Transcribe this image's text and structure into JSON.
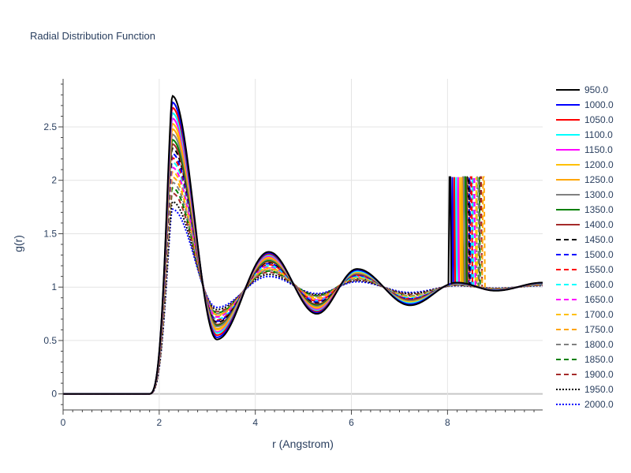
{
  "chart_data": {
    "type": "line",
    "title": "Radial Distribution Function",
    "xlabel": "r (Angstrom)",
    "ylabel": "g(r)",
    "xlim": [
      0,
      9.98
    ],
    "ylim": [
      -0.15,
      2.95
    ],
    "xticks": [
      0,
      2,
      4,
      6,
      8
    ],
    "yticks": [
      0,
      0.5,
      1,
      1.5,
      2,
      2.5
    ],
    "xtick_labels": [
      "0",
      "2",
      "4",
      "6",
      "8"
    ],
    "ytick_labels": [
      "0",
      "0.5",
      "1",
      "1.5",
      "2",
      "2.5"
    ],
    "grid": true,
    "legend_position": "right",
    "model": {
      "r_onset": 1.78,
      "peak1_r": 2.27,
      "min1_r": 3.2,
      "peak2_r": 4.28,
      "min2_r": 5.28,
      "peak3_r": 6.12,
      "min3_r": 7.22,
      "spike_height": 2.03
    },
    "series": [
      {
        "name": "950.0",
        "color": "#000000",
        "dash": "solid",
        "peak1": 2.79,
        "min1": 0.51,
        "peak2": 1.33,
        "min2": 0.75,
        "peak3": 1.17,
        "spike_r": 8.05
      },
      {
        "name": "1000.0",
        "color": "#0000ff",
        "dash": "solid",
        "peak1": 2.73,
        "min1": 0.53,
        "peak2": 1.32,
        "min2": 0.76,
        "peak3": 1.16,
        "spike_r": 8.1
      },
      {
        "name": "1050.0",
        "color": "#ff0000",
        "dash": "solid",
        "peak1": 2.68,
        "min1": 0.55,
        "peak2": 1.31,
        "min2": 0.77,
        "peak3": 1.16,
        "spike_r": 8.14
      },
      {
        "name": "1100.0",
        "color": "#00ffff",
        "dash": "solid",
        "peak1": 2.63,
        "min1": 0.57,
        "peak2": 1.3,
        "min2": 0.78,
        "peak3": 1.15,
        "spike_r": 8.18
      },
      {
        "name": "1150.0",
        "color": "#ff00ff",
        "dash": "solid",
        "peak1": 2.58,
        "min1": 0.58,
        "peak2": 1.29,
        "min2": 0.79,
        "peak3": 1.15,
        "spike_r": 8.22
      },
      {
        "name": "1200.0",
        "color": "#ffc000",
        "dash": "solid",
        "peak1": 2.53,
        "min1": 0.6,
        "peak2": 1.28,
        "min2": 0.8,
        "peak3": 1.14,
        "spike_r": 8.26
      },
      {
        "name": "1250.0",
        "color": "#ffa500",
        "dash": "solid",
        "peak1": 2.48,
        "min1": 0.61,
        "peak2": 1.27,
        "min2": 0.81,
        "peak3": 1.14,
        "spike_r": 8.3
      },
      {
        "name": "1300.0",
        "color": "#808080",
        "dash": "solid",
        "peak1": 2.43,
        "min1": 0.63,
        "peak2": 1.26,
        "min2": 0.82,
        "peak3": 1.13,
        "spike_r": 8.33
      },
      {
        "name": "1350.0",
        "color": "#008000",
        "dash": "solid",
        "peak1": 2.38,
        "min1": 0.64,
        "peak2": 1.25,
        "min2": 0.83,
        "peak3": 1.13,
        "spike_r": 8.37
      },
      {
        "name": "1400.0",
        "color": "#a52a2a",
        "dash": "solid",
        "peak1": 2.34,
        "min1": 0.65,
        "peak2": 1.24,
        "min2": 0.84,
        "peak3": 1.12,
        "spike_r": 8.4
      },
      {
        "name": "1450.0",
        "color": "#000000",
        "dash": "dashed",
        "peak1": 2.3,
        "min1": 0.67,
        "peak2": 1.23,
        "min2": 0.85,
        "peak3": 1.12,
        "spike_r": 8.43
      },
      {
        "name": "1500.0",
        "color": "#0000ff",
        "dash": "dashed",
        "peak1": 2.25,
        "min1": 0.68,
        "peak2": 1.22,
        "min2": 0.86,
        "peak3": 1.11,
        "spike_r": 8.46
      },
      {
        "name": "1550.0",
        "color": "#ff0000",
        "dash": "dashed",
        "peak1": 2.21,
        "min1": 0.69,
        "peak2": 1.21,
        "min2": 0.87,
        "peak3": 1.11,
        "spike_r": 8.49
      },
      {
        "name": "1600.0",
        "color": "#00ffff",
        "dash": "dashed",
        "peak1": 2.17,
        "min1": 0.7,
        "peak2": 1.2,
        "min2": 0.87,
        "peak3": 1.1,
        "spike_r": 8.52
      },
      {
        "name": "1650.0",
        "color": "#ff00ff",
        "dash": "dashed",
        "peak1": 2.12,
        "min1": 0.72,
        "peak2": 1.19,
        "min2": 0.88,
        "peak3": 1.1,
        "spike_r": 8.55
      },
      {
        "name": "1700.0",
        "color": "#ffc000",
        "dash": "dashed",
        "peak1": 2.08,
        "min1": 0.73,
        "peak2": 1.18,
        "min2": 0.89,
        "peak3": 1.09,
        "spike_r": 8.6
      },
      {
        "name": "1750.0",
        "color": "#ffa500",
        "dash": "dashed",
        "peak1": 2.03,
        "min1": 0.74,
        "peak2": 1.17,
        "min2": 0.9,
        "peak3": 1.09,
        "spike_r": 8.75
      },
      {
        "name": "1800.0",
        "color": "#808080",
        "dash": "dashed",
        "peak1": 1.98,
        "min1": 0.75,
        "peak2": 1.16,
        "min2": 0.91,
        "peak3": 1.08,
        "spike_r": 8.63
      },
      {
        "name": "1850.0",
        "color": "#008000",
        "dash": "dashed",
        "peak1": 1.93,
        "min1": 0.76,
        "peak2": 1.15,
        "min2": 0.92,
        "peak3": 1.08,
        "spike_r": 8.66
      },
      {
        "name": "1900.0",
        "color": "#a52a2a",
        "dash": "dashed",
        "peak1": 1.88,
        "min1": 0.77,
        "peak2": 1.14,
        "min2": 0.92,
        "peak3": 1.07,
        "spike_r": 8.69
      },
      {
        "name": "1950.0",
        "color": "#000000",
        "dash": "dotted",
        "peak1": 1.8,
        "min1": 0.79,
        "peak2": 1.12,
        "min2": 0.93,
        "peak3": 1.06,
        "spike_r": null
      },
      {
        "name": "2000.0",
        "color": "#0000ff",
        "dash": "dotted",
        "peak1": 1.73,
        "min1": 0.81,
        "peak2": 1.1,
        "min2": 0.94,
        "peak3": 1.05,
        "spike_r": null
      }
    ]
  }
}
